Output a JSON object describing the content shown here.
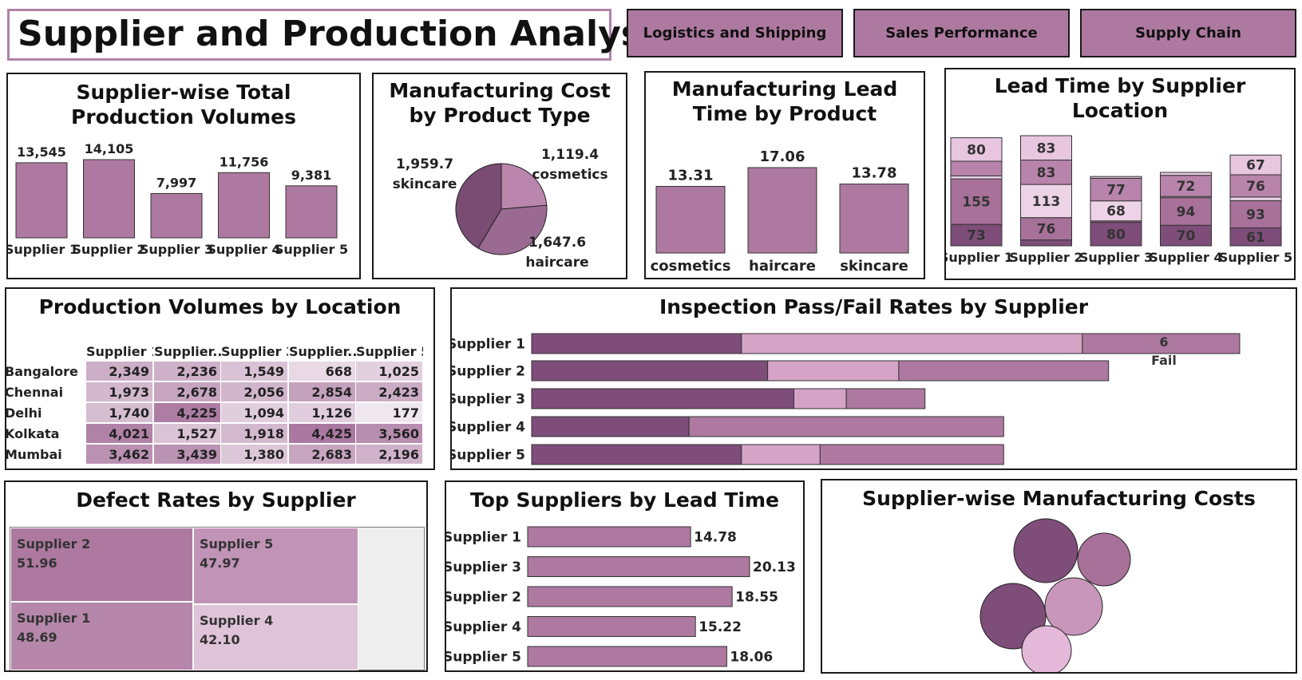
{
  "title": "Supplier and Production Analysis",
  "nav": [
    "Logistics and Shipping",
    "Sales Performance",
    "Supply Chain"
  ],
  "colors": {
    "accent": "#ae79a0",
    "dark": "#7e4d79",
    "mid": "#a77199",
    "light": "#d5a3c6",
    "pale": "#ecd3e6",
    "border": "#1a1a1a",
    "title_border": "#b084a8"
  },
  "supplier_volumes": {
    "title": "Supplier-wise Total Production Volumes",
    "chart_data": {
      "type": "bar",
      "categories": [
        "Supplier 1",
        "Supplier 2",
        "Supplier 3",
        "Supplier 4",
        "Supplier 5"
      ],
      "values": [
        13545,
        14105,
        7997,
        11756,
        9381
      ],
      "labels": [
        "13,545",
        "14,105",
        "7,997",
        "11,756",
        "9,381"
      ]
    }
  },
  "mfg_cost_product": {
    "title": "Manufacturing Cost by Product Type",
    "chart_data": {
      "type": "pie",
      "slices": [
        {
          "label": "cosmetics",
          "value": 1119.4,
          "value_label": "1,119.4",
          "color": "#ba86ad"
        },
        {
          "label": "haircare",
          "value": 1647.6,
          "value_label": "1,647.6",
          "color": "#9b6a92"
        },
        {
          "label": "skincare",
          "value": 1959.7,
          "value_label": "1,959.7",
          "color": "#7a4c74"
        }
      ]
    }
  },
  "lead_time_product": {
    "title": "Manufacturing Lead Time by Product",
    "chart_data": {
      "type": "bar",
      "categories": [
        "cosmetics",
        "haircare",
        "skincare"
      ],
      "values": [
        13.31,
        17.06,
        13.78
      ],
      "labels": [
        "13.31",
        "17.06",
        "13.78"
      ]
    }
  },
  "lead_time_location": {
    "title": "Lead Time by Supplier Location",
    "chart_data": {
      "type": "bar",
      "stacked": true,
      "categories": [
        "Supplier 1",
        "Supplier 2",
        "Supplier 3",
        "Supplier 4",
        "Supplier 5"
      ],
      "series": [
        {
          "values": [
            73,
            20,
            80,
            70,
            61
          ],
          "labels": [
            "73",
            "",
            "80",
            "70",
            "61"
          ],
          "color": "#7e4d79"
        },
        {
          "values": [
            155,
            76,
            5,
            94,
            93
          ],
          "labels": [
            "155",
            "76",
            "",
            "94",
            "93"
          ],
          "color": "#a77199"
        },
        {
          "values": [
            10,
            113,
            68,
            4,
            12
          ],
          "labels": [
            "",
            "113",
            "68",
            "",
            ""
          ],
          "color": "#ecd3e6"
        },
        {
          "values": [
            50,
            83,
            77,
            72,
            76
          ],
          "labels": [
            "",
            "83",
            "77",
            "72",
            "76"
          ],
          "color": "#b884ab"
        },
        {
          "values": [
            80,
            83,
            6,
            10,
            67
          ],
          "labels": [
            "80",
            "83",
            "",
            "",
            "67"
          ],
          "color": "#e8c6df"
        }
      ]
    }
  },
  "volumes_location": {
    "title": "Production Volumes by Location",
    "columns": [
      "Supplier 1",
      "Supplier..",
      "Supplier 3",
      "Supplier..",
      "Supplier 5"
    ],
    "rows": [
      "Bangalore",
      "Chennai",
      "Delhi",
      "Kolkata",
      "Mumbai"
    ],
    "chart_data": {
      "type": "heatmap",
      "values": [
        [
          2349,
          2236,
          1549,
          668,
          1025
        ],
        [
          1973,
          2678,
          2056,
          2854,
          2423
        ],
        [
          1740,
          4225,
          1094,
          1126,
          177
        ],
        [
          4021,
          1527,
          1918,
          4425,
          3560
        ],
        [
          3462,
          3439,
          1380,
          2683,
          2196
        ]
      ],
      "labels": [
        [
          "2,349",
          "2,236",
          "1,549",
          "668",
          "1,025"
        ],
        [
          "1,973",
          "2,678",
          "2,056",
          "2,854",
          "2,423"
        ],
        [
          "1,740",
          "4,225",
          "1,094",
          "1,126",
          "177"
        ],
        [
          "4,021",
          "1,527",
          "1,918",
          "4,425",
          "3,560"
        ],
        [
          "3,462",
          "3,439",
          "1,380",
          "2,683",
          "2,196"
        ]
      ]
    }
  },
  "inspection": {
    "title": "Inspection Pass/Fail Rates by Supplier",
    "chart_data": {
      "type": "bar",
      "orientation": "horizontal",
      "stacked": true,
      "categories": [
        "Supplier 1",
        "Supplier 2",
        "Supplier 3",
        "Supplier 4",
        "Supplier 5"
      ],
      "series": [
        {
          "values": [
            4,
            4.5,
            5,
            3,
            4
          ],
          "color": "#7e4d79"
        },
        {
          "values": [
            6.5,
            2.5,
            1,
            0,
            1.5
          ],
          "color": "#d5a3c6"
        },
        {
          "name": "Fail",
          "values": [
            3,
            4,
            1.5,
            6,
            3.5
          ],
          "color": "#ae79a0"
        }
      ],
      "annotation": {
        "value": "6",
        "label": "Fail"
      }
    }
  },
  "defect_rates": {
    "title": "Defect Rates by Supplier",
    "chart_data": {
      "type": "treemap",
      "items": [
        {
          "label": "Supplier 2",
          "value": 51.96,
          "value_label": "51.96",
          "color": "#ae79a0"
        },
        {
          "label": "Supplier 5",
          "value": 47.97,
          "value_label": "47.97",
          "color": "#c193b6"
        },
        {
          "label": "Supplier 1",
          "value": 48.69,
          "value_label": "48.69",
          "color": "#b687ab"
        },
        {
          "label": "Supplier 4",
          "value": 42.1,
          "value_label": "42.10",
          "color": "#dfc3d8"
        }
      ]
    }
  },
  "top_lead": {
    "title": "Top Suppliers by Lead Time",
    "chart_data": {
      "type": "bar",
      "orientation": "horizontal",
      "categories": [
        "Supplier 1",
        "Supplier 3",
        "Supplier 2",
        "Supplier 4",
        "Supplier 5"
      ],
      "values": [
        14.78,
        20.13,
        18.55,
        15.22,
        18.06
      ],
      "labels": [
        "14.78",
        "20.13",
        "18.55",
        "15.22",
        "18.06"
      ]
    }
  },
  "mfg_costs_supplier": {
    "title": "Supplier-wise Manufacturing Costs",
    "chart_data": {
      "type": "bubble",
      "bubbles": [
        {
          "size": 40,
          "color": "#7e4d79"
        },
        {
          "size": 33,
          "color": "#a77199"
        },
        {
          "size": 41,
          "color": "#7e4d79"
        },
        {
          "size": 36,
          "color": "#c796ba"
        },
        {
          "size": 31,
          "color": "#e4b8d8"
        }
      ]
    }
  }
}
